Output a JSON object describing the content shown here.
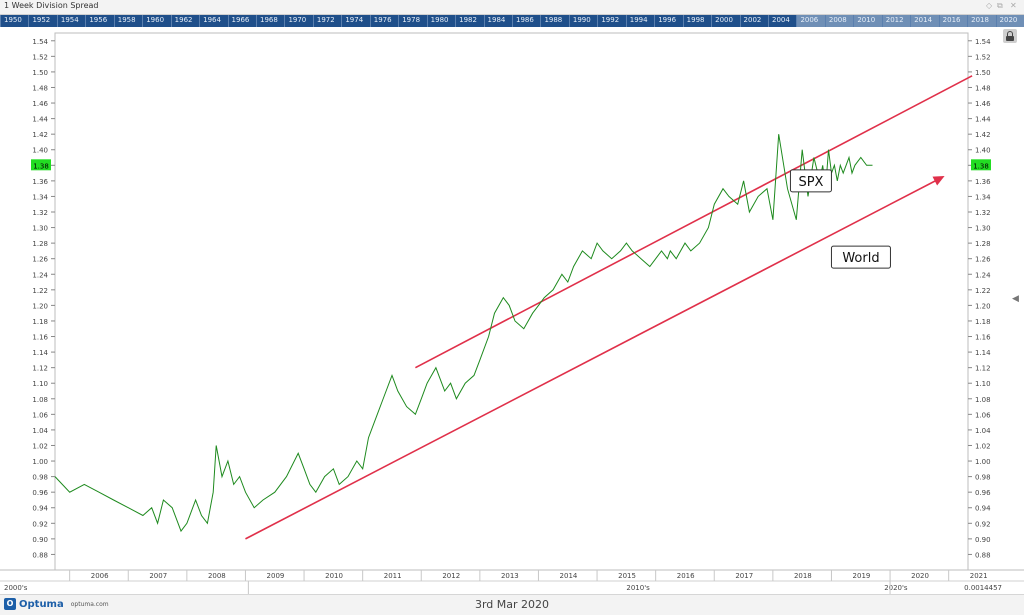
{
  "window": {
    "title": "1 Week Division Spread"
  },
  "overview_years": [
    "1950",
    "1952",
    "1954",
    "1956",
    "1958",
    "1960",
    "1962",
    "1964",
    "1966",
    "1968",
    "1970",
    "1972",
    "1974",
    "1976",
    "1978",
    "1980",
    "1982",
    "1984",
    "1986",
    "1988",
    "1990",
    "1992",
    "1994",
    "1996",
    "1998",
    "2000",
    "2002",
    "2004",
    "2006",
    "2008",
    "2010",
    "2012",
    "2014",
    "2016",
    "2018",
    "2020"
  ],
  "footer": {
    "brand": "Optuma",
    "url": "optuma.com",
    "date": "3rd Mar 2020"
  },
  "icons": {
    "lock": "lock-icon",
    "collapse": "chevron-left-icon"
  },
  "colors": {
    "series": "#1e8a1e",
    "channel": "#e0304a",
    "badge": "#22dd22"
  },
  "chart_data": {
    "type": "line",
    "x_range": [
      "2005-10",
      "2021-04"
    ],
    "ylim": [
      0.86,
      1.55
    ],
    "y_ticks": [
      "0.88",
      "0.90",
      "0.92",
      "0.94",
      "0.96",
      "0.98",
      "1.00",
      "1.02",
      "1.04",
      "1.06",
      "1.08",
      "1.10",
      "1.12",
      "1.14",
      "1.16",
      "1.18",
      "1.20",
      "1.22",
      "1.24",
      "1.26",
      "1.28",
      "1.30",
      "1.32",
      "1.34",
      "1.36",
      "1.38",
      "1.40",
      "1.42",
      "1.44",
      "1.46",
      "1.48",
      "1.50",
      "1.52",
      "1.54"
    ],
    "x_ticks": [
      "2006",
      "2007",
      "2008",
      "2009",
      "2010",
      "2011",
      "2012",
      "2013",
      "2014",
      "2015",
      "2016",
      "2017",
      "2018",
      "2019",
      "2020",
      "2021"
    ],
    "decade_labels": [
      "2000's",
      "2010's",
      "2020's"
    ],
    "last_value": "1.38",
    "corner_readout": "0.0014457",
    "series": [
      {
        "x": [
          2005.75,
          2006.0,
          2006.25,
          2006.5,
          2006.75,
          2007.0,
          2007.25,
          2007.4,
          2007.5,
          2007.6,
          2007.75,
          2007.9,
          2008.0,
          2008.15,
          2008.25,
          2008.35,
          2008.45,
          2008.5,
          2008.6,
          2008.7,
          2008.8,
          2008.9,
          2009.0,
          2009.15,
          2009.3,
          2009.5,
          2009.7,
          2009.9,
          2010.0,
          2010.1,
          2010.2,
          2010.35,
          2010.5,
          2010.6,
          2010.75,
          2010.9,
          2011.0,
          2011.1,
          2011.25,
          2011.4,
          2011.5,
          2011.6,
          2011.75,
          2011.9,
          2012.0,
          2012.1,
          2012.25,
          2012.4,
          2012.5,
          2012.6,
          2012.75,
          2012.9,
          2013.0,
          2013.15,
          2013.25,
          2013.4,
          2013.5,
          2013.6,
          2013.75,
          2013.9,
          2014.0,
          2014.1,
          2014.25,
          2014.4,
          2014.5,
          2014.6,
          2014.75,
          2014.9,
          2015.0,
          2015.1,
          2015.25,
          2015.4,
          2015.5,
          2015.6,
          2015.75,
          2015.9,
          2016.0,
          2016.1,
          2016.2,
          2016.25,
          2016.35,
          2016.5,
          2016.6,
          2016.75,
          2016.9,
          2017.0,
          2017.15,
          2017.25,
          2017.4,
          2017.5,
          2017.6,
          2017.75,
          2017.9,
          2018.0,
          2018.1,
          2018.25,
          2018.4,
          2018.5,
          2018.6,
          2018.7,
          2018.8,
          2018.85,
          2018.9,
          2018.95,
          2019.0,
          2019.05,
          2019.1,
          2019.15,
          2019.2,
          2019.25,
          2019.3,
          2019.35,
          2019.4,
          2019.5,
          2019.6,
          2019.7
        ],
        "y": [
          0.98,
          0.96,
          0.97,
          0.96,
          0.95,
          0.94,
          0.93,
          0.94,
          0.92,
          0.95,
          0.94,
          0.91,
          0.92,
          0.95,
          0.93,
          0.92,
          0.96,
          1.02,
          0.98,
          1.0,
          0.97,
          0.98,
          0.96,
          0.94,
          0.95,
          0.96,
          0.98,
          1.01,
          0.99,
          0.97,
          0.96,
          0.98,
          0.99,
          0.97,
          0.98,
          1.0,
          0.99,
          1.03,
          1.06,
          1.09,
          1.11,
          1.09,
          1.07,
          1.06,
          1.08,
          1.1,
          1.12,
          1.09,
          1.1,
          1.08,
          1.1,
          1.11,
          1.13,
          1.16,
          1.19,
          1.21,
          1.2,
          1.18,
          1.17,
          1.19,
          1.2,
          1.21,
          1.22,
          1.24,
          1.23,
          1.25,
          1.27,
          1.26,
          1.28,
          1.27,
          1.26,
          1.27,
          1.28,
          1.27,
          1.26,
          1.25,
          1.26,
          1.27,
          1.26,
          1.27,
          1.26,
          1.28,
          1.27,
          1.28,
          1.3,
          1.33,
          1.35,
          1.34,
          1.33,
          1.36,
          1.32,
          1.34,
          1.35,
          1.31,
          1.42,
          1.35,
          1.31,
          1.4,
          1.34,
          1.39,
          1.36,
          1.38,
          1.35,
          1.4,
          1.37,
          1.38,
          1.36,
          1.38,
          1.37,
          1.38,
          1.39,
          1.37,
          1.38,
          1.39,
          1.38,
          1.38
        ]
      }
    ],
    "channel_upper": {
      "x1": 2011.9,
      "y1": 1.12,
      "x2": 2021.4,
      "y2": 1.495
    },
    "channel_lower": {
      "x1": 2009.0,
      "y1": 0.9,
      "x2": 2020.9,
      "y2": 1.365
    },
    "annotations": [
      {
        "text": "SPX",
        "x": 2018.3,
        "y": 1.36
      },
      {
        "text": "World",
        "x": 2019.0,
        "y": 1.262
      }
    ]
  }
}
